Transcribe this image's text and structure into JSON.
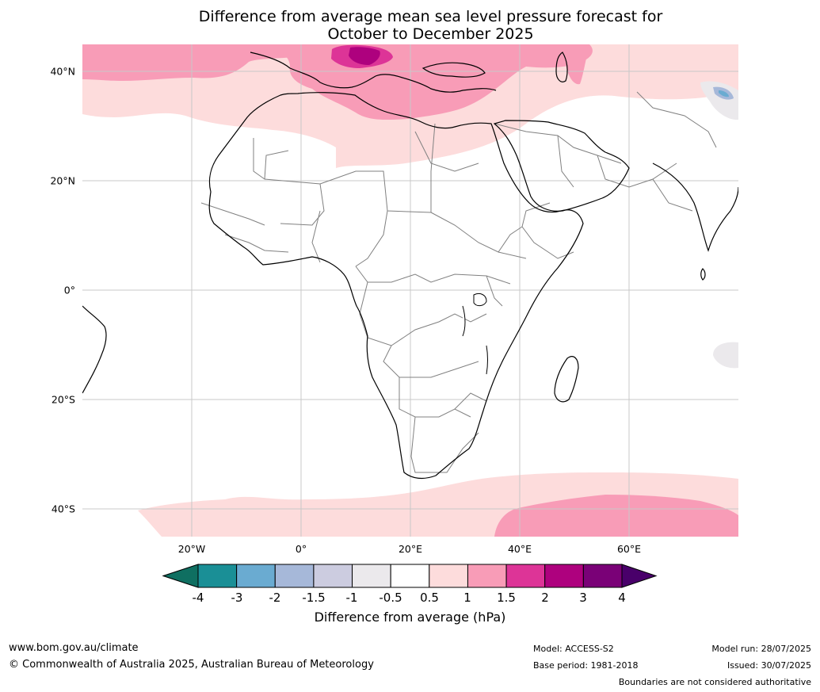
{
  "title": {
    "line1": "Difference from average mean sea level pressure forecast for",
    "line2": "October to December 2025"
  },
  "map": {
    "projection": "Plate Carrée",
    "extent_lon": [
      -40,
      80
    ],
    "extent_lat": [
      -45,
      45
    ],
    "lat_ticks": [
      "40°N",
      "20°N",
      "0°",
      "20°S",
      "40°S"
    ],
    "lon_ticks": [
      "20°W",
      "0°",
      "20°E",
      "40°E",
      "60°E"
    ],
    "gridlines": true,
    "shaded_regions": [
      {
        "name": "Mediterranean and Black Sea positive anomaly",
        "category": "1.5 to 3"
      },
      {
        "name": "North Atlantic positive band",
        "category": "1 to 1.5"
      },
      {
        "name": "North Africa and Middle East weak positive",
        "category": "0.5 to 1"
      },
      {
        "name": "Southern Ocean positive band",
        "category": "0.5 to 1"
      },
      {
        "name": "South Indian Ocean positive anomaly",
        "category": "1 to 1.5"
      },
      {
        "name": "Tibetan Plateau negative anomaly",
        "category": "-2 to -1"
      },
      {
        "name": "Mascarene area weak negative",
        "category": "-1 to -0.5"
      }
    ]
  },
  "colorbar": {
    "ticks": [
      "-4",
      "-3",
      "-2",
      "-1.5",
      "-1",
      "-0.5",
      "0.5",
      "1",
      "1.5",
      "2",
      "3",
      "4"
    ],
    "colors": [
      "#1a8f96",
      "#6aabd1",
      "#a6b8d9",
      "#cccce0",
      "#ebe9ec",
      "#ffffff",
      "#fddcdc",
      "#f89cb7",
      "#dd3497",
      "#ae017e",
      "#7a0177"
    ],
    "under_color": "#0f6f61",
    "over_color": "#49006a",
    "label": "Difference from average (hPa)"
  },
  "footer": {
    "website": "www.bom.gov.au/climate",
    "copyright": "© Commonwealth of Australia 2025, Australian Bureau of Meteorology",
    "model": "Model: ACCESS-S2",
    "base_period": "Base period: 1981-2018",
    "model_run": "Model run: 28/07/2025",
    "issued": "Issued: 30/07/2025",
    "disclaimer": "Boundaries are not considered authoritative"
  }
}
